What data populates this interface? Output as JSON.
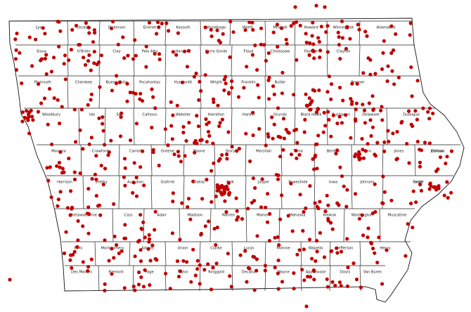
{
  "map": {
    "dot_color": "#c00000",
    "line_color": "#222222",
    "county_labels": [
      "Lyon",
      "Osceola",
      "Dickinson",
      "Emmet",
      "Kossuth",
      "Winnebago",
      "Worth",
      "Mitchell",
      "Howard",
      "Winneshiek",
      "Allamakee",
      "Sioux",
      "O'Brien",
      "Clay",
      "Palo Alto",
      "Hancock",
      "Cerro Gordo",
      "Floyd",
      "Chickasaw",
      "Fayette",
      "Clayton",
      "Plymouth",
      "Cherokee",
      "Buena Vista",
      "Pocahontas",
      "Humboldt",
      "Wright",
      "Franklin",
      "Butler",
      "Bremer",
      "Woodbury",
      "Ida",
      "Sac",
      "Calhoun",
      "Webster",
      "Hamilton",
      "Hardin",
      "Grundy",
      "Black Hawk",
      "Buchanan",
      "Delaware",
      "Dubuque",
      "Monona",
      "Crawford",
      "Carroll",
      "Greene",
      "Boone",
      "Story",
      "Marshall",
      "Tama",
      "Benton",
      "Linn",
      "Jones",
      "Jackson",
      "Clinton",
      "Harrison",
      "Shelby",
      "Audubon",
      "Guthrie",
      "Dallas",
      "Polk",
      "Jasper",
      "Poweshiek",
      "Iowa",
      "Johnson",
      "Cedar",
      "Scott",
      "Pottawattamie",
      "Cass",
      "Adair",
      "Madison",
      "Warren",
      "Marion",
      "Mahaska",
      "Keokuk",
      "Washington",
      "Muscatine",
      "Mills",
      "Montgomery",
      "Adams",
      "Union",
      "Clarke",
      "Lucas",
      "Monroe",
      "Wapello",
      "Jefferson",
      "Henry",
      "Des Moines",
      "Fremont",
      "Page",
      "Taylor",
      "Ringgold",
      "Decatur",
      "Wayne",
      "Appanoose",
      "Davis",
      "Van Buren",
      "Lee"
    ]
  }
}
